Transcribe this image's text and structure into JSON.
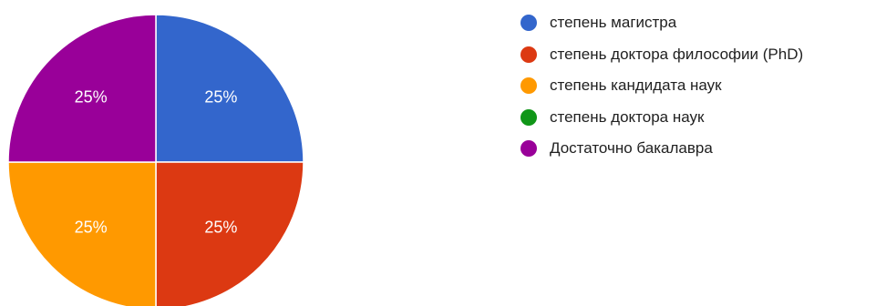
{
  "chart_data": {
    "type": "pie",
    "slices": [
      {
        "label": "степень магистра",
        "value": 25,
        "color": "#3366cc",
        "display": "25%"
      },
      {
        "label": "степень доктора философии (PhD)",
        "value": 25,
        "color": "#dc3912",
        "display": "25%"
      },
      {
        "label": "степень кандидата наук",
        "value": 25,
        "color": "#ff9900",
        "display": "25%"
      },
      {
        "label": "степень доктора наук",
        "value": 0,
        "color": "#109618",
        "display": "0%"
      },
      {
        "label": "Достаточно бакалавра",
        "value": 25,
        "color": "#990099",
        "display": "25%"
      }
    ],
    "legend_position": "right",
    "start_angle": "top",
    "direction": "clockwise"
  }
}
